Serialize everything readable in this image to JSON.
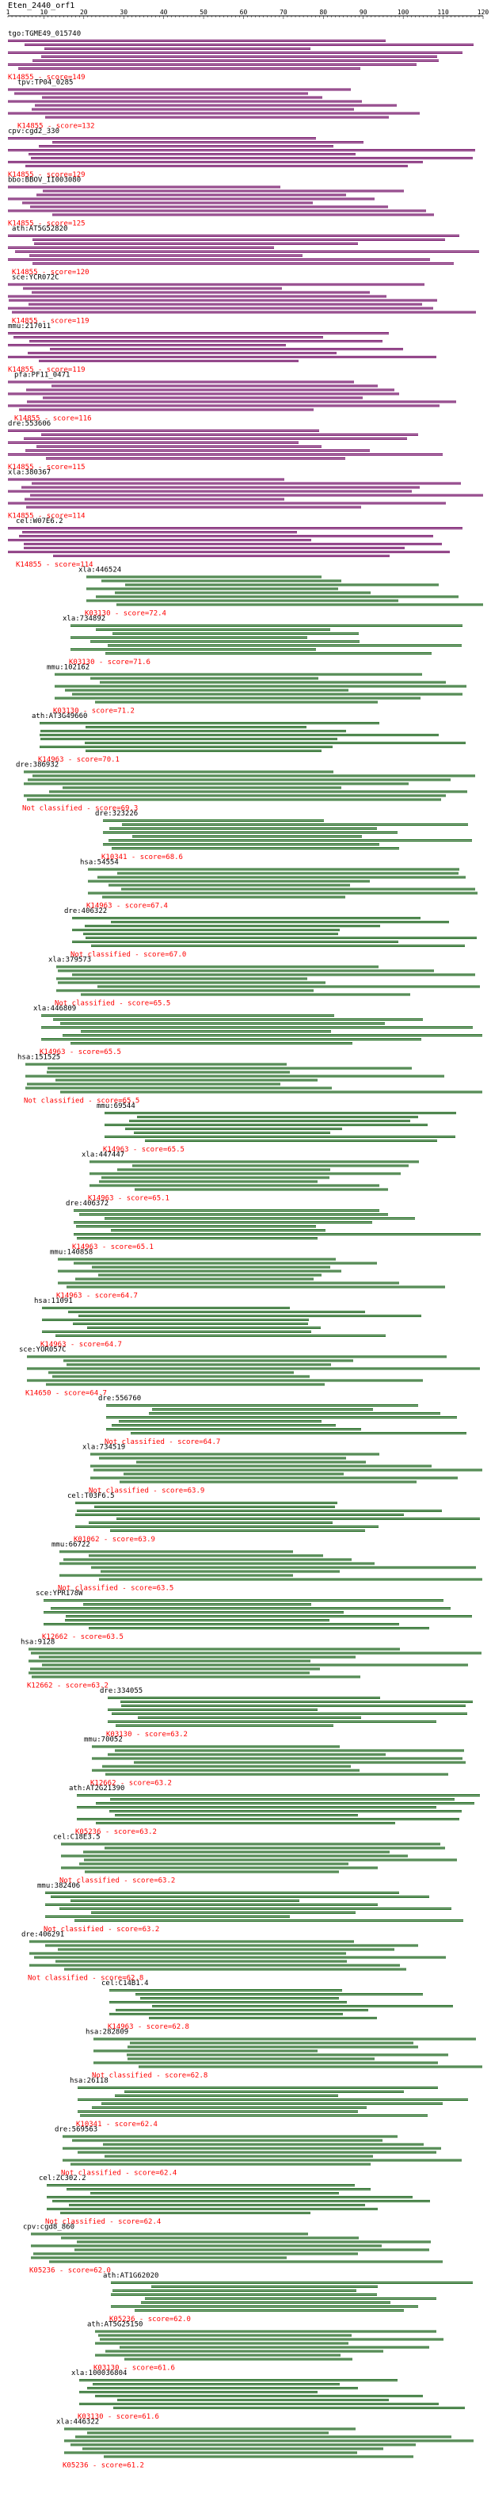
{
  "header": {
    "query_name": "Eten_2440_orf1",
    "ruler": {
      "min": 1,
      "max": 120,
      "labels": [
        "1",
        "10",
        "20",
        "30",
        "40",
        "50",
        "60",
        "70",
        "80",
        "90",
        "100",
        "110",
        "120"
      ]
    }
  },
  "colors": {
    "purple_bar": "#7a1a6e",
    "green_bar": "#1f6e1f",
    "bar_highlight": "#e0d0e0",
    "score_text": "#ff0000",
    "name_text": "#000000",
    "ruler": "#000000"
  },
  "hits": [
    {
      "name": "tgo:TGME49_015740",
      "score_label": "K14855 - score=149",
      "color": "purple"
    },
    {
      "name": "tpv:TP04_0285",
      "score_label": "K14855 - score=132",
      "color": "purple"
    },
    {
      "name": "cpv:cgd2_330",
      "score_label": "K14855 - score=129",
      "color": "purple"
    },
    {
      "name": "bbo:BBOV_II003080",
      "score_label": "K14855 - score=125",
      "color": "purple"
    },
    {
      "name": "ath:AT5G52820",
      "score_label": "K14855 - score=120",
      "color": "purple"
    },
    {
      "name": "sce:YCR072C",
      "score_label": "K14855 - score=119",
      "color": "purple"
    },
    {
      "name": "mmu:217011",
      "score_label": "K14855 - score=119",
      "color": "purple"
    },
    {
      "name": "pfa:PF11_0471",
      "score_label": "K14855 - score=116",
      "color": "purple"
    },
    {
      "name": "dre:553606",
      "score_label": "K14855 - score=115",
      "color": "purple"
    },
    {
      "name": "xla:380367",
      "score_label": "K14855 - score=114",
      "color": "purple"
    },
    {
      "name": "cel:W07E6.2",
      "score_label": "K14855 - score=114",
      "color": "purple"
    },
    {
      "name": "xla:446524",
      "score_label": "K03130 - score=72.4",
      "color": "green"
    },
    {
      "name": "xla:734892",
      "score_label": "K03130 - score=71.6",
      "color": "green"
    },
    {
      "name": "mmu:102162",
      "score_label": "K03130 - score=71.2",
      "color": "green"
    },
    {
      "name": "ath:AT3G49660",
      "score_label": "K14963 - score=70.1",
      "color": "green"
    },
    {
      "name": "dre:386932",
      "score_label": "Not classified - score=69.3",
      "color": "green"
    },
    {
      "name": "dre:323226",
      "score_label": "K10341 - score=68.6",
      "color": "green"
    },
    {
      "name": "hsa:54554",
      "score_label": "K14963 - score=67.4",
      "color": "green"
    },
    {
      "name": "dre:406322",
      "score_label": "Not classified - score=67.0",
      "color": "green"
    },
    {
      "name": "xla:379573",
      "score_label": "Not classified - score=65.5",
      "color": "green"
    },
    {
      "name": "xla:446809",
      "score_label": "K14963 - score=65.5",
      "color": "green"
    },
    {
      "name": "hsa:151525",
      "score_label": "Not classified - score=65.5",
      "color": "green"
    },
    {
      "name": "mmu:69544",
      "score_label": "K14963 - score=65.5",
      "color": "green"
    },
    {
      "name": "xla:447447",
      "score_label": "K14963 - score=65.1",
      "color": "green"
    },
    {
      "name": "dre:406372",
      "score_label": "K14963 - score=65.1",
      "color": "green"
    },
    {
      "name": "mmu:140858",
      "score_label": "K14963 - score=64.7",
      "color": "green"
    },
    {
      "name": "hsa:11091",
      "score_label": "K14963 - score=64.7",
      "color": "green"
    },
    {
      "name": "sce:YOR057C",
      "score_label": "K14650 - score=64.7",
      "color": "green"
    },
    {
      "name": "dre:556760",
      "score_label": "Not classified - score=64.7",
      "color": "green"
    },
    {
      "name": "xla:734519",
      "score_label": "Not classified - score=63.9",
      "color": "green"
    },
    {
      "name": "cel:T03F6.5",
      "score_label": "K01062 - score=63.9",
      "color": "green"
    },
    {
      "name": "mmu:66722",
      "score_label": "Not classified - score=63.5",
      "color": "green"
    },
    {
      "name": "sce:YPR178W",
      "score_label": "K12662 - score=63.5",
      "color": "green"
    },
    {
      "name": "hsa:9128",
      "score_label": "K12662 - score=63.2",
      "color": "green"
    },
    {
      "name": "dre:334055",
      "score_label": "K03130 - score=63.2",
      "color": "green"
    },
    {
      "name": "mmu:70052",
      "score_label": "K12662 - score=63.2",
      "color": "green"
    },
    {
      "name": "ath:AT2G21390",
      "score_label": "K05236 - score=63.2",
      "color": "green"
    },
    {
      "name": "cel:C18E3.5",
      "score_label": "Not classified - score=63.2",
      "color": "green"
    },
    {
      "name": "mmu:382406",
      "score_label": "Not classified - score=63.2",
      "color": "green"
    },
    {
      "name": "dre:406291",
      "score_label": "Not classified - score=62.8",
      "color": "green"
    },
    {
      "name": "cel:C14B1.4",
      "score_label": "K14963 - score=62.8",
      "color": "green"
    },
    {
      "name": "hsa:282809",
      "score_label": "Not classified - score=62.8",
      "color": "green"
    },
    {
      "name": "hsa:26118",
      "score_label": "K10341 - score=62.4",
      "color": "green"
    },
    {
      "name": "dre:569563",
      "score_label": "Not classified - score=62.4",
      "color": "green"
    },
    {
      "name": "cel:ZC302.2",
      "score_label": "Not classified - score=62.4",
      "color": "green"
    },
    {
      "name": "cpv:cgd8_860",
      "score_label": "K05236 - score=62.0",
      "color": "green"
    },
    {
      "name": "ath:AT1G62020",
      "score_label": "K05236 - score=62.0",
      "color": "green"
    },
    {
      "name": "ath:AT5G25150",
      "score_label": "K03130 - score=61.6",
      "color": "green"
    },
    {
      "name": "xla:100036804",
      "score_label": "K03130 - score=61.6",
      "color": "green"
    },
    {
      "name": "xla:446322",
      "score_label": "K05236 - score=61.2",
      "color": "green"
    }
  ]
}
